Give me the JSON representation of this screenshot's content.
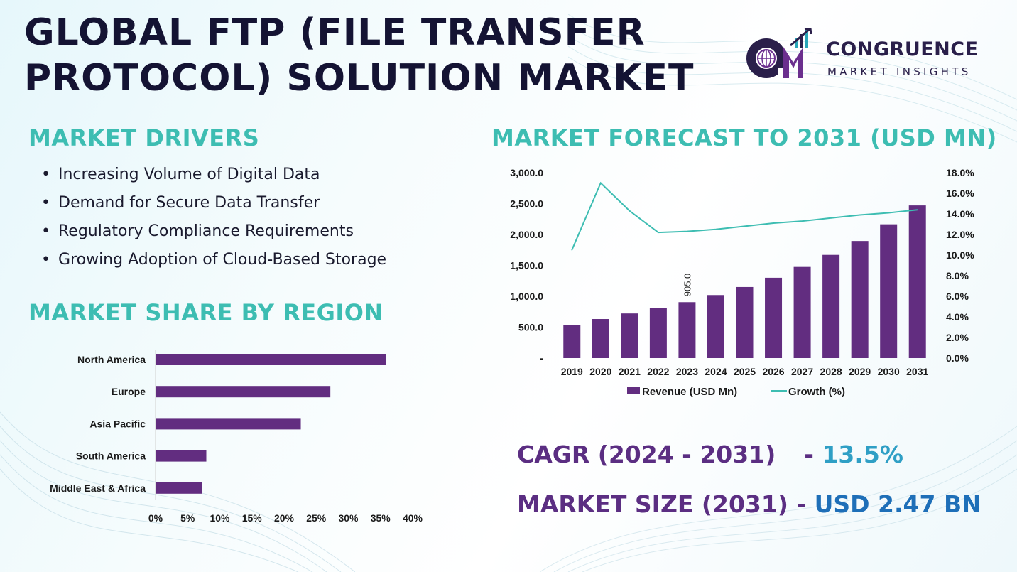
{
  "title": {
    "line1": "GLOBAL FTP (FILE TRANSFER",
    "line2": "PROTOCOL) SOLUTION MARKET"
  },
  "logo": {
    "name": "CONGRUENCE",
    "subtitle": "MARKET INSIGHTS",
    "monogram": "CM"
  },
  "drivers": {
    "heading": "MARKET DRIVERS",
    "items": [
      "Increasing Volume of Digital Data",
      "Demand for Secure Data Transfer",
      "Regulatory Compliance Requirements",
      "Growing Adoption of Cloud-Based Storage"
    ]
  },
  "region": {
    "heading": "MARKET SHARE BY REGION"
  },
  "forecast": {
    "heading": "MARKET FORECAST TO 2031 (USD MN)"
  },
  "kpis": {
    "cagr_label": "CAGR (2024 - 2031)",
    "cagr_sep": "- ",
    "cagr_value": "13.5%",
    "size_label": "MARKET SIZE (2031)",
    "size_sep": " - ",
    "size_value": "USD 2.47 BN"
  },
  "colors": {
    "purple": "#622d80",
    "teal": "#3dbdb2",
    "navy": "#141333",
    "blue": "#1e6fb8"
  },
  "chart_data": [
    {
      "type": "bar",
      "orientation": "horizontal",
      "categories": [
        "North America",
        "Europe",
        "Asia Pacific",
        "South America",
        "Middle East & Africa"
      ],
      "values": [
        35.8,
        27.2,
        22.6,
        7.9,
        7.2
      ],
      "xlim": [
        0,
        40
      ],
      "xticks": [
        "0%",
        "5%",
        "10%",
        "15%",
        "20%",
        "25%",
        "30%",
        "35%",
        "40%"
      ],
      "grid": false
    },
    {
      "type": "bar",
      "categories": [
        "2019",
        "2020",
        "2021",
        "2022",
        "2023",
        "2024",
        "2025",
        "2026",
        "2027",
        "2028",
        "2029",
        "2030",
        "2031"
      ],
      "series": [
        {
          "name": "Revenue (USD Mn)",
          "type": "bar",
          "axis": "left",
          "values": [
            538,
            632,
            722,
            805,
            905,
            1020,
            1150,
            1300,
            1475,
            1670,
            1895,
            2165,
            2470
          ]
        },
        {
          "name": "Growth (%)",
          "type": "line",
          "axis": "right",
          "values": [
            10.5,
            17.0,
            14.3,
            12.2,
            12.3,
            12.5,
            12.8,
            13.1,
            13.3,
            13.6,
            13.9,
            14.1,
            14.4
          ]
        }
      ],
      "ylim": [
        0,
        3000
      ],
      "yticks": [
        "-",
        "500.0",
        "1,000.0",
        "1,500.0",
        "2,000.0",
        "2,500.0",
        "3,000.0"
      ],
      "y2lim": [
        0,
        18
      ],
      "y2ticks": [
        "0.0%",
        "2.0%",
        "4.0%",
        "6.0%",
        "8.0%",
        "10.0%",
        "12.0%",
        "14.0%",
        "16.0%",
        "18.0%"
      ],
      "data_labels": [
        {
          "category": "2023",
          "text": "905.0"
        }
      ],
      "legend": "bottom",
      "grid": false
    }
  ]
}
